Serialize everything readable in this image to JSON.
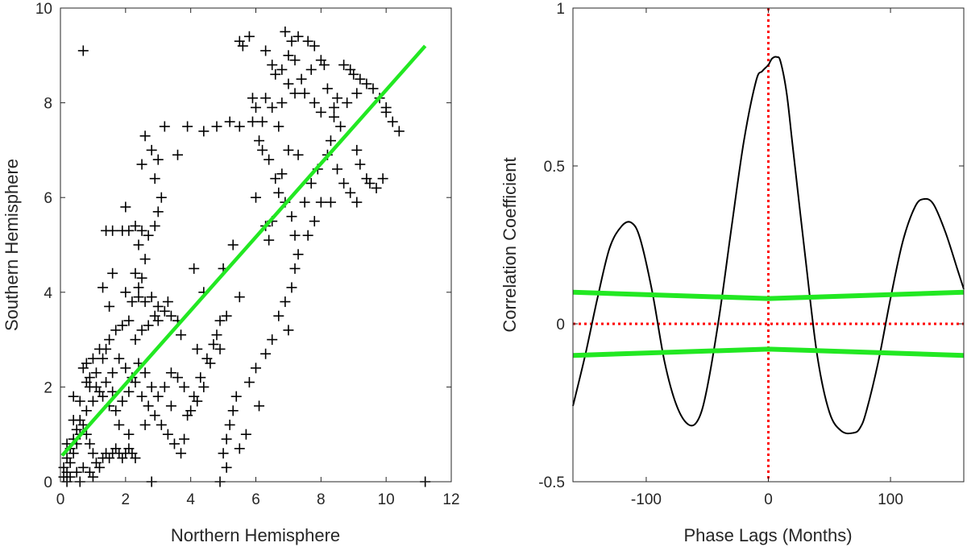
{
  "chart_data": [
    {
      "type": "scatter",
      "title": "",
      "xlabel": "Northern Hemisphere",
      "ylabel": "Southern Hemisphere",
      "xlim": [
        0,
        12
      ],
      "ylim": [
        0,
        10
      ],
      "xticks": [
        "0",
        "2",
        "4",
        "6",
        "8",
        "10",
        "12"
      ],
      "yticks": [
        "0",
        "2",
        "4",
        "6",
        "8",
        "10"
      ],
      "grid": false,
      "marker": "+",
      "marker_color": "#000000",
      "fit_line": {
        "x": [
          0.05,
          11.2
        ],
        "y": [
          0.55,
          9.2
        ],
        "color": "#22e822"
      },
      "points": [
        [
          0.7,
          9.1
        ],
        [
          5.5,
          9.3
        ],
        [
          5.8,
          9.4
        ],
        [
          5.6,
          9.2
        ],
        [
          6.3,
          9.1
        ],
        [
          6.5,
          8.8
        ],
        [
          6.9,
          9.5
        ],
        [
          7.1,
          9.3
        ],
        [
          7.3,
          9.4
        ],
        [
          7.6,
          9.3
        ],
        [
          7.8,
          9.2
        ],
        [
          7.0,
          9.0
        ],
        [
          7.2,
          8.9
        ],
        [
          6.8,
          8.7
        ],
        [
          6.6,
          8.6
        ],
        [
          7.4,
          8.5
        ],
        [
          7.7,
          8.7
        ],
        [
          8.0,
          8.9
        ],
        [
          8.1,
          8.8
        ],
        [
          8.7,
          8.8
        ],
        [
          8.9,
          8.7
        ],
        [
          9.0,
          8.6
        ],
        [
          9.2,
          8.5
        ],
        [
          9.4,
          8.4
        ],
        [
          9.6,
          8.3
        ],
        [
          9.8,
          8.1
        ],
        [
          10.0,
          7.9
        ],
        [
          10.2,
          7.6
        ],
        [
          10.4,
          7.4
        ],
        [
          10.0,
          7.8
        ],
        [
          9.1,
          8.2
        ],
        [
          8.8,
          8.0
        ],
        [
          8.5,
          8.1
        ],
        [
          8.2,
          8.3
        ],
        [
          8.0,
          7.8
        ],
        [
          7.8,
          8.0
        ],
        [
          7.5,
          8.2
        ],
        [
          7.2,
          8.2
        ],
        [
          7.0,
          8.4
        ],
        [
          6.8,
          8.0
        ],
        [
          6.5,
          7.9
        ],
        [
          6.3,
          8.1
        ],
        [
          6.0,
          7.9
        ],
        [
          5.9,
          7.6
        ],
        [
          6.1,
          7.2
        ],
        [
          6.2,
          7.0
        ],
        [
          6.4,
          6.8
        ],
        [
          6.6,
          6.4
        ],
        [
          6.7,
          6.1
        ],
        [
          6.9,
          5.9
        ],
        [
          7.1,
          5.6
        ],
        [
          7.2,
          5.2
        ],
        [
          7.3,
          4.8
        ],
        [
          7.2,
          4.5
        ],
        [
          7.1,
          4.1
        ],
        [
          6.9,
          3.8
        ],
        [
          6.7,
          3.5
        ],
        [
          6.5,
          3.0
        ],
        [
          6.3,
          2.7
        ],
        [
          6.0,
          2.4
        ],
        [
          5.8,
          2.1
        ],
        [
          5.4,
          1.8
        ],
        [
          5.3,
          1.5
        ],
        [
          5.2,
          1.2
        ],
        [
          5.1,
          0.9
        ],
        [
          5.0,
          0.6
        ],
        [
          5.1,
          0.3
        ],
        [
          4.9,
          0.0
        ],
        [
          6.8,
          6.5
        ],
        [
          6.5,
          5.5
        ],
        [
          6.4,
          5.1
        ],
        [
          6.0,
          6.0
        ],
        [
          6.3,
          5.4
        ],
        [
          7.5,
          5.9
        ],
        [
          7.7,
          6.3
        ],
        [
          7.9,
          6.6
        ],
        [
          8.2,
          6.9
        ],
        [
          8.5,
          6.6
        ],
        [
          8.9,
          6.1
        ],
        [
          9.2,
          6.7
        ],
        [
          9.4,
          6.4
        ],
        [
          9.7,
          6.2
        ],
        [
          9.9,
          6.4
        ],
        [
          9.1,
          5.9
        ],
        [
          8.0,
          5.9
        ],
        [
          7.8,
          5.5
        ],
        [
          7.6,
          5.2
        ],
        [
          8.4,
          7.7
        ],
        [
          8.6,
          7.5
        ],
        [
          8.3,
          7.2
        ],
        [
          7.0,
          7.0
        ],
        [
          7.3,
          6.9
        ],
        [
          5.5,
          7.5
        ],
        [
          5.2,
          7.6
        ],
        [
          4.8,
          7.5
        ],
        [
          4.4,
          7.4
        ],
        [
          3.9,
          7.5
        ],
        [
          3.6,
          6.9
        ],
        [
          3.2,
          7.5
        ],
        [
          2.6,
          7.3
        ],
        [
          2.8,
          7.0
        ],
        [
          3.0,
          6.8
        ],
        [
          2.5,
          6.7
        ],
        [
          2.9,
          6.4
        ],
        [
          3.1,
          6.0
        ],
        [
          3.0,
          5.7
        ],
        [
          2.9,
          5.4
        ],
        [
          2.7,
          5.2
        ],
        [
          2.5,
          5.3
        ],
        [
          2.3,
          5.4
        ],
        [
          2.1,
          5.3
        ],
        [
          1.9,
          5.3
        ],
        [
          1.6,
          5.3
        ],
        [
          1.4,
          5.3
        ],
        [
          2.0,
          5.8
        ],
        [
          2.4,
          5.0
        ],
        [
          2.6,
          4.7
        ],
        [
          2.5,
          4.3
        ],
        [
          2.4,
          4.1
        ],
        [
          2.3,
          4.4
        ],
        [
          1.3,
          4.1
        ],
        [
          1.6,
          4.4
        ],
        [
          2.0,
          4.0
        ],
        [
          1.5,
          3.7
        ],
        [
          2.2,
          3.8
        ],
        [
          2.4,
          3.9
        ],
        [
          2.6,
          3.8
        ],
        [
          2.8,
          3.9
        ],
        [
          3.0,
          3.7
        ],
        [
          3.2,
          3.6
        ],
        [
          3.4,
          3.5
        ],
        [
          3.6,
          3.4
        ],
        [
          3.0,
          3.4
        ],
        [
          2.7,
          3.3
        ],
        [
          2.5,
          3.2
        ],
        [
          2.3,
          3.0
        ],
        [
          2.1,
          3.4
        ],
        [
          1.9,
          3.3
        ],
        [
          1.7,
          3.2
        ],
        [
          1.5,
          3.0
        ],
        [
          1.4,
          2.8
        ],
        [
          1.2,
          2.8
        ],
        [
          1.0,
          2.6
        ],
        [
          0.8,
          2.5
        ],
        [
          0.7,
          2.4
        ],
        [
          0.9,
          2.2
        ],
        [
          1.1,
          2.0
        ],
        [
          1.3,
          1.8
        ],
        [
          1.5,
          1.6
        ],
        [
          1.7,
          1.5
        ],
        [
          1.9,
          1.7
        ],
        [
          2.1,
          1.9
        ],
        [
          2.3,
          2.1
        ],
        [
          2.5,
          1.8
        ],
        [
          2.7,
          1.6
        ],
        [
          2.9,
          1.4
        ],
        [
          3.1,
          1.2
        ],
        [
          3.3,
          1.0
        ],
        [
          3.5,
          0.8
        ],
        [
          3.7,
          0.6
        ],
        [
          3.9,
          1.4
        ],
        [
          4.1,
          1.8
        ],
        [
          4.3,
          2.2
        ],
        [
          4.5,
          2.6
        ],
        [
          4.7,
          2.9
        ],
        [
          4.9,
          3.4
        ],
        [
          5.1,
          3.5
        ],
        [
          4.8,
          3.1
        ],
        [
          4.6,
          2.5
        ],
        [
          4.4,
          2.0
        ],
        [
          4.2,
          1.7
        ],
        [
          4.0,
          1.5
        ],
        [
          3.8,
          2.0
        ],
        [
          3.6,
          2.2
        ],
        [
          3.4,
          2.3
        ],
        [
          3.2,
          2.0
        ],
        [
          3.0,
          1.8
        ],
        [
          2.8,
          2.0
        ],
        [
          2.6,
          2.3
        ],
        [
          2.4,
          2.5
        ],
        [
          2.2,
          2.2
        ],
        [
          2.0,
          2.4
        ],
        [
          1.8,
          2.6
        ],
        [
          1.6,
          2.3
        ],
        [
          1.4,
          2.1
        ],
        [
          1.2,
          1.9
        ],
        [
          1.0,
          1.7
        ],
        [
          0.8,
          1.5
        ],
        [
          0.6,
          1.3
        ],
        [
          0.5,
          1.1
        ],
        [
          0.4,
          0.9
        ],
        [
          0.3,
          0.7
        ],
        [
          0.2,
          0.5
        ],
        [
          0.1,
          0.3
        ],
        [
          0.1,
          0.1
        ],
        [
          0.2,
          0.2
        ],
        [
          0.3,
          0.4
        ],
        [
          0.4,
          0.6
        ],
        [
          0.5,
          0.8
        ],
        [
          0.6,
          1.0
        ],
        [
          0.7,
          1.2
        ],
        [
          0.8,
          1.0
        ],
        [
          0.9,
          0.8
        ],
        [
          1.0,
          0.6
        ],
        [
          1.1,
          0.4
        ],
        [
          1.2,
          0.3
        ],
        [
          1.3,
          0.5
        ],
        [
          1.4,
          0.6
        ],
        [
          1.5,
          0.5
        ],
        [
          1.6,
          0.6
        ],
        [
          1.7,
          0.7
        ],
        [
          1.8,
          0.6
        ],
        [
          1.9,
          0.5
        ],
        [
          2.0,
          0.6
        ],
        [
          2.1,
          0.7
        ],
        [
          2.2,
          0.6
        ],
        [
          2.3,
          0.5
        ],
        [
          0.3,
          0.1
        ],
        [
          0.5,
          0.2
        ],
        [
          0.7,
          0.3
        ],
        [
          0.9,
          0.2
        ],
        [
          0.2,
          0.8
        ],
        [
          0.4,
          1.3
        ],
        [
          0.6,
          1.7
        ],
        [
          0.9,
          2.0
        ],
        [
          1.1,
          2.3
        ],
        [
          1.3,
          2.6
        ],
        [
          0.2,
          0.0
        ],
        [
          0.6,
          0.0
        ],
        [
          1.0,
          0.1
        ],
        [
          2.8,
          0.0
        ],
        [
          11.2,
          0.0
        ],
        [
          3.8,
          0.9
        ],
        [
          4.2,
          2.8
        ],
        [
          3.3,
          3.8
        ],
        [
          2.9,
          3.5
        ],
        [
          1.8,
          1.2
        ],
        [
          2.1,
          1.0
        ],
        [
          0.4,
          1.8
        ],
        [
          0.8,
          2.1
        ],
        [
          1.6,
          1.9
        ],
        [
          2.6,
          1.2
        ],
        [
          3.4,
          1.6
        ],
        [
          4.1,
          4.5
        ],
        [
          4.9,
          2.8
        ],
        [
          5.5,
          3.9
        ],
        [
          5.0,
          4.5
        ],
        [
          6.1,
          1.6
        ],
        [
          5.7,
          1.0
        ],
        [
          5.5,
          0.7
        ],
        [
          7.0,
          3.2
        ],
        [
          8.4,
          7.9
        ],
        [
          9.1,
          7.0
        ],
        [
          9.5,
          6.3
        ],
        [
          8.7,
          6.3
        ],
        [
          8.3,
          5.9
        ],
        [
          5.9,
          8.1
        ],
        [
          6.2,
          7.6
        ],
        [
          6.7,
          7.5
        ],
        [
          5.3,
          5.0
        ],
        [
          4.4,
          4.0
        ],
        [
          3.7,
          3.1
        ]
      ]
    },
    {
      "type": "line",
      "title": "",
      "xlabel": "Phase Lags (Months)",
      "ylabel": "Correlation Coefficient",
      "xlim": [
        -160,
        160
      ],
      "ylim": [
        -0.5,
        1
      ],
      "xticks": [
        "-100",
        "0",
        "100"
      ],
      "yticks": [
        "-0.5",
        "0",
        "0.5",
        "1"
      ],
      "grid": false,
      "series": [
        {
          "color": "#000000",
          "x": [
            -160,
            -150,
            -140,
            -130,
            -120,
            -112,
            -105,
            -95,
            -85,
            -75,
            -65,
            -57,
            -50,
            -40,
            -30,
            -20,
            -10,
            -5,
            0,
            3,
            7,
            10,
            15,
            20,
            30,
            40,
            50,
            60,
            70,
            75,
            80,
            90,
            100,
            110,
            120,
            127,
            135,
            145,
            155,
            160
          ],
          "y": [
            -0.26,
            -0.1,
            0.08,
            0.24,
            0.31,
            0.32,
            0.27,
            0.1,
            -0.12,
            -0.26,
            -0.32,
            -0.3,
            -0.2,
            0.03,
            0.31,
            0.58,
            0.77,
            0.8,
            0.82,
            0.84,
            0.845,
            0.83,
            0.73,
            0.56,
            0.22,
            -0.1,
            -0.28,
            -0.34,
            -0.345,
            -0.33,
            -0.28,
            -0.12,
            0.08,
            0.26,
            0.37,
            0.395,
            0.38,
            0.29,
            0.17,
            0.11
          ]
        },
        {
          "color": "#22e822",
          "x": [
            -160,
            0,
            160
          ],
          "y": [
            0.1,
            0.08,
            0.1
          ]
        },
        {
          "color": "#22e822",
          "x": [
            -160,
            0,
            160
          ],
          "y": [
            -0.1,
            -0.08,
            -0.1
          ]
        }
      ],
      "reference_lines": [
        {
          "orientation": "vertical",
          "value": 0,
          "color": "#ff0000",
          "style": "dotted"
        },
        {
          "orientation": "horizontal",
          "value": 0,
          "color": "#ff0000",
          "style": "dotted"
        }
      ]
    }
  ]
}
